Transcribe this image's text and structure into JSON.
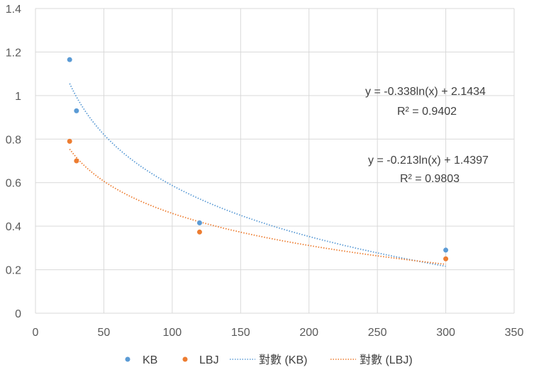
{
  "chart_data": {
    "type": "scatter",
    "title": "",
    "xlabel": "",
    "ylabel": "",
    "xlim": [
      0,
      350
    ],
    "ylim": [
      0,
      1.4
    ],
    "x_ticks": [
      "0",
      "50",
      "100",
      "150",
      "200",
      "250",
      "300",
      "350"
    ],
    "y_ticks": [
      "0",
      "0.2",
      "0.4",
      "0.6",
      "0.8",
      "1",
      "1.2",
      "1.4"
    ],
    "grid": true,
    "legend_position": "bottom",
    "series": [
      {
        "name": "KB",
        "color": "#5B9BD5",
        "points": [
          {
            "x": 25,
            "y": 1.165
          },
          {
            "x": 30,
            "y": 0.93
          },
          {
            "x": 120,
            "y": 0.415
          },
          {
            "x": 300,
            "y": 0.29
          }
        ]
      },
      {
        "name": "LBJ",
        "color": "#ED7D31",
        "points": [
          {
            "x": 25,
            "y": 0.79
          },
          {
            "x": 30,
            "y": 0.7
          },
          {
            "x": 120,
            "y": 0.373
          },
          {
            "x": 300,
            "y": 0.25
          }
        ]
      }
    ],
    "trendlines": [
      {
        "name": "對數 (KB)",
        "series": "KB",
        "kind": "logarithmic",
        "a": -0.338,
        "b": 2.1434,
        "x_range": [
          25,
          300
        ],
        "color": "#5B9BD5",
        "equation": "y = -0.338ln(x) + 2.1434",
        "r2": "R² = 0.9402"
      },
      {
        "name": "對數 (LBJ)",
        "series": "LBJ",
        "kind": "logarithmic",
        "a": -0.213,
        "b": 1.4397,
        "x_range": [
          25,
          300
        ],
        "color": "#ED7D31",
        "equation": "y = -0.213ln(x) + 1.4397",
        "r2": "R² = 0.9803"
      }
    ]
  }
}
